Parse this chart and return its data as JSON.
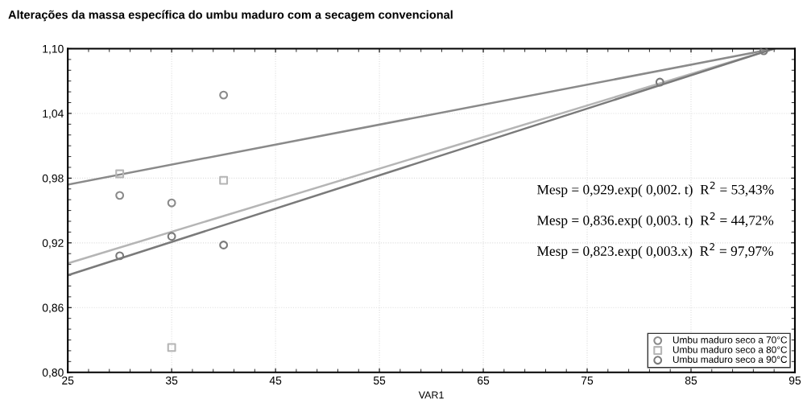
{
  "chart_data": {
    "type": "scatter",
    "title": "Alterações da massa específica do umbu maduro com a secagem convencional",
    "xlabel": "VAR1",
    "xlim": [
      25,
      95
    ],
    "xticks": [
      25,
      35,
      45,
      55,
      65,
      75,
      85,
      95
    ],
    "ylim": [
      0.8,
      1.1
    ],
    "yticks": [
      {
        "value": 0.8,
        "label": "0,80"
      },
      {
        "value": 0.86,
        "label": "0,86"
      },
      {
        "value": 0.92,
        "label": "0,92"
      },
      {
        "value": 0.98,
        "label": "0,98"
      },
      {
        "value": 1.04,
        "label": "1,04"
      },
      {
        "value": 1.1,
        "label": "1,10"
      }
    ],
    "grid": true,
    "legend": "bottom right",
    "series": [
      {
        "name": "Umbu maduro seco a 70°C",
        "color": "#8a8a8a",
        "marker": "circle",
        "x": [
          30,
          35,
          40
        ],
        "values": [
          0.964,
          0.957,
          1.057
        ]
      },
      {
        "name": "Umbu maduro seco a 80°C",
        "color": "#b5b5b5",
        "marker": "square",
        "x": [
          30,
          35,
          40
        ],
        "values": [
          0.984,
          0.823,
          0.978
        ]
      },
      {
        "name": "Umbu maduro seco a 90°C",
        "color": "#7a7a7a",
        "marker": "circle",
        "x": [
          30,
          35,
          40,
          82,
          92
        ],
        "values": [
          0.908,
          0.926,
          0.918,
          1.069,
          1.098
        ]
      },
      {
        "type": "line",
        "color": "#8a8a8a",
        "x": [
          25,
          93
        ],
        "values": [
          0.974,
          1.1
        ]
      },
      {
        "type": "line",
        "color": "#b5b5b5",
        "x": [
          25,
          93
        ],
        "values": [
          0.901,
          1.1
        ]
      },
      {
        "type": "line",
        "color": "#7a7a7a",
        "x": [
          25,
          93
        ],
        "values": [
          0.89,
          1.1
        ]
      }
    ],
    "annotations": [
      "Mesp = 0,929.exp( 0,002. t)  R$^{2}$ = 53,43%",
      "Mesp = 0,836.exp( 0,003. t)  R$^{2}$ = 44,72%",
      "Mesp = 0,823.exp( 0,003.x)  R$^{2}$ = 97,97%"
    ]
  }
}
